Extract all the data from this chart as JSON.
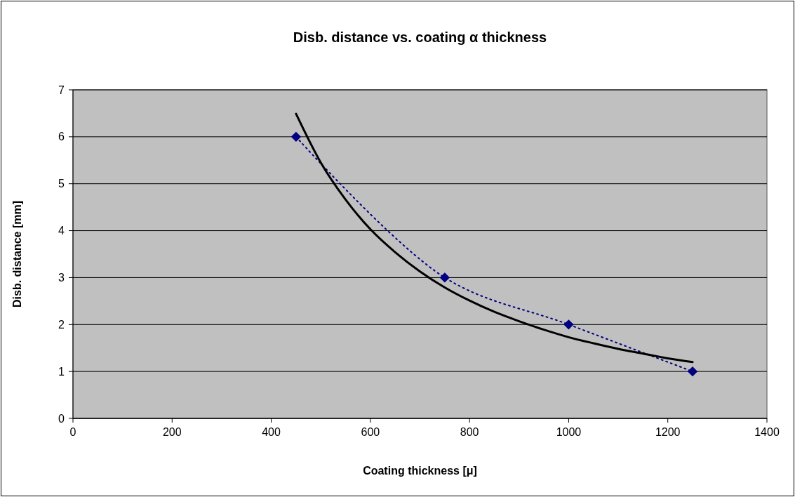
{
  "chart_data": {
    "type": "line",
    "title": "Disb. distance vs. coating α thickness",
    "xlabel": "Coating thickness [μ]",
    "ylabel": "Disb. distance [mm]",
    "xlim": [
      0,
      1400
    ],
    "xticks": [
      0,
      200,
      400,
      600,
      800,
      1000,
      1200,
      1400
    ],
    "ylim": [
      0,
      7
    ],
    "yticks": [
      0,
      1,
      2,
      3,
      4,
      5,
      6,
      7
    ],
    "grid": "y",
    "series": [
      {
        "color": "#000080",
        "marker": "diamond",
        "line_style": "dotted",
        "x": [
          450,
          750,
          1000,
          1250
        ],
        "values": [
          6,
          3,
          2,
          1
        ]
      },
      {
        "color": "#000000",
        "marker": "none",
        "line_style": "solid",
        "x": [
          450,
          500,
          550,
          600,
          650,
          700,
          750,
          800,
          850,
          900,
          950,
          1000,
          1050,
          1100,
          1150,
          1200,
          1250
        ],
        "values": [
          6.49,
          5.45,
          4.66,
          4.03,
          3.54,
          3.13,
          2.79,
          2.51,
          2.27,
          2.07,
          1.89,
          1.73,
          1.6,
          1.48,
          1.38,
          1.28,
          1.2
        ]
      }
    ]
  }
}
